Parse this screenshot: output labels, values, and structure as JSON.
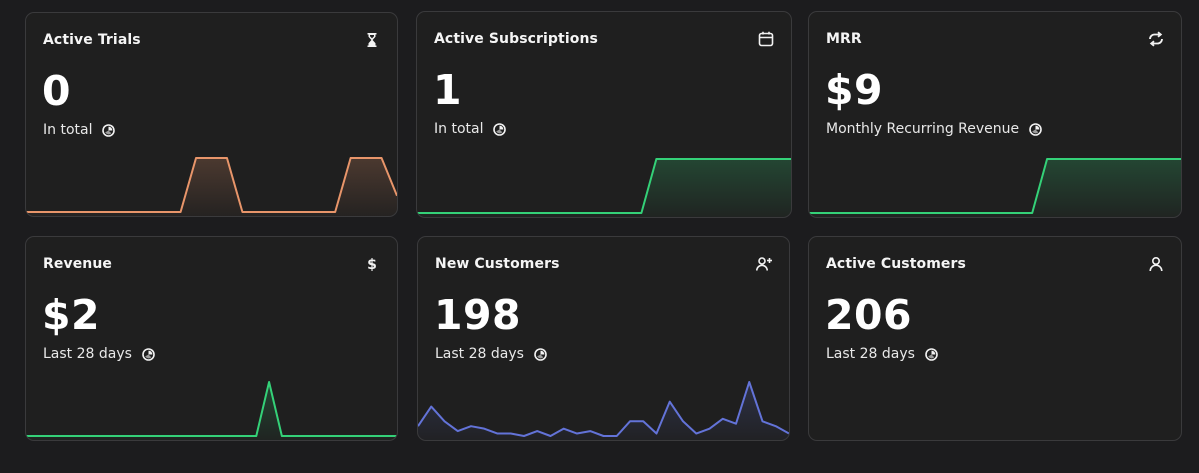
{
  "cards": [
    {
      "title": "Active Trials",
      "icon": "hourglass-icon",
      "value": "0",
      "subtitle": "In total",
      "color": "#e8956a",
      "series": [
        0,
        0,
        0,
        0,
        0,
        0,
        0,
        0,
        0,
        0,
        0,
        1,
        1,
        1,
        0,
        0,
        0,
        0,
        0,
        0,
        0,
        1,
        1,
        1,
        0.3
      ]
    },
    {
      "title": "Active Subscriptions",
      "icon": "calendar-icon",
      "value": "1",
      "subtitle": "In total",
      "color": "#34d178",
      "series": [
        0,
        0,
        0,
        0,
        0,
        0,
        0,
        0,
        0,
        0,
        0,
        0,
        0,
        0,
        0,
        0,
        1,
        1,
        1,
        1,
        1,
        1,
        1,
        1,
        1,
        1
      ]
    },
    {
      "title": "MRR",
      "icon": "repeat-icon",
      "value": "$9",
      "subtitle": "Monthly Recurring Revenue",
      "color": "#34d178",
      "series": [
        0,
        0,
        0,
        0,
        0,
        0,
        0,
        0,
        0,
        0,
        0,
        0,
        0,
        0,
        0,
        0,
        1,
        1,
        1,
        1,
        1,
        1,
        1,
        1,
        1,
        1
      ]
    },
    {
      "title": "Revenue",
      "icon": "dollar-icon",
      "value": "$2",
      "subtitle": "Last 28 days",
      "color": "#34d178",
      "series": [
        0,
        0,
        0,
        0,
        0,
        0,
        0,
        0,
        0,
        0,
        0,
        0,
        0,
        0,
        0,
        0,
        0,
        0,
        0,
        1,
        0,
        0,
        0,
        0,
        0,
        0,
        0,
        0,
        0,
        0
      ]
    },
    {
      "title": "New Customers",
      "icon": "user-plus-icon",
      "value": "198",
      "subtitle": "Last 28 days",
      "color": "#6373d8",
      "series": [
        2,
        6,
        3,
        1,
        2,
        1.5,
        0.5,
        0.5,
        0,
        1,
        0,
        1.5,
        0.5,
        1,
        0,
        0,
        3,
        3,
        0.5,
        7,
        3,
        0.5,
        1.5,
        3.5,
        2.5,
        11,
        3,
        2,
        0.5
      ]
    },
    {
      "title": "Active Customers",
      "icon": "user-icon",
      "value": "206",
      "subtitle": "Last 28 days",
      "color": "#34d178",
      "series": []
    }
  ]
}
